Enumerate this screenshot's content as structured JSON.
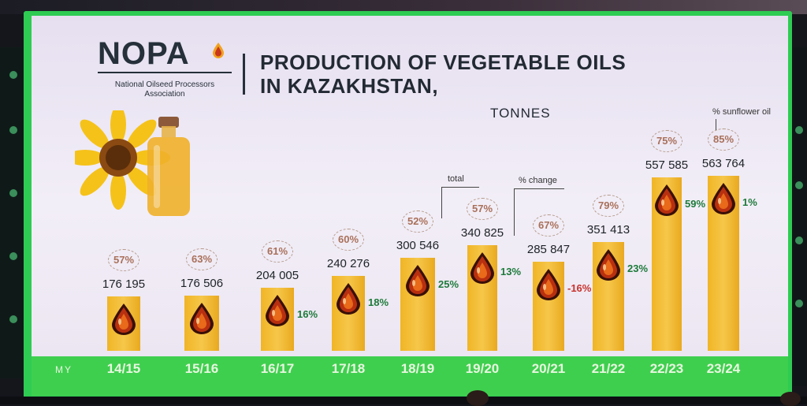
{
  "logo": {
    "word": "NOPA",
    "subtitle_line1": "National Oilseed Processors",
    "subtitle_line2": "Association"
  },
  "title_line1": "PRODUCTION OF VEGETABLE OILS",
  "title_line2": "IN KAZAKHSTAN,",
  "units": "TONNES",
  "annotations": {
    "total": "total",
    "change": "% change",
    "sunflower": "% sunflower oil"
  },
  "axis_prefix": "MY",
  "colors": {
    "bar": "#f3bd32",
    "change_positive": "#1d7a3a",
    "change_negative": "#c8322d",
    "percent_circle_text": "#a9705a",
    "axis_strip": "#3fcf4f"
  },
  "chart_data": {
    "type": "bar",
    "categories": [
      "14/15",
      "15/16",
      "16/17",
      "17/18",
      "18/19",
      "19/20",
      "20/21",
      "21/22",
      "22/23",
      "23/24"
    ],
    "values": [
      176195,
      176506,
      204005,
      240276,
      300546,
      340825,
      285847,
      351413,
      557585,
      563764
    ],
    "value_labels": [
      "176 195",
      "176 506",
      "204 005",
      "240 276",
      "300 546",
      "340 825",
      "285 847",
      "351 413",
      "557 585",
      "563 764"
    ],
    "sunflower_share_labels": [
      "57%",
      "63%",
      "61%",
      "60%",
      "52%",
      "57%",
      "67%",
      "79%",
      "75%",
      "85%"
    ],
    "change_labels": [
      "",
      "",
      "16%",
      "18%",
      "25%",
      "13%",
      "-16%",
      "23%",
      "59%",
      "1%"
    ],
    "change_values": [
      null,
      null,
      16,
      18,
      25,
      13,
      -16,
      23,
      59,
      1
    ]
  }
}
